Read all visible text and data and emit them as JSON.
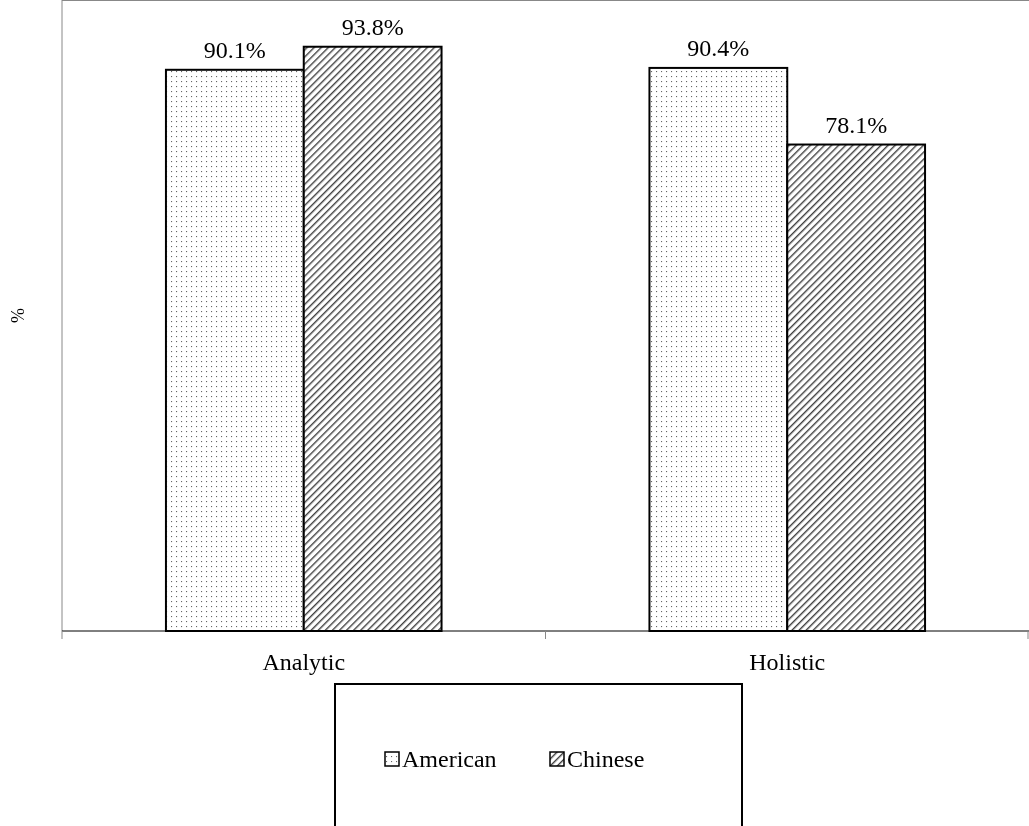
{
  "chart_data": {
    "type": "bar",
    "ylabel": "%",
    "categories": [
      "Analytic",
      "Holistic"
    ],
    "series": [
      {
        "name": "American",
        "color": "#000000",
        "values": [
          90.1,
          90.4
        ],
        "value_labels": [
          "90.1%",
          "90.4%"
        ]
      },
      {
        "name": "Chinese",
        "color": "#000000",
        "values": [
          93.8,
          78.1
        ],
        "value_labels": [
          "93.8%",
          "78.1%"
        ]
      }
    ],
    "legend": "bottom"
  }
}
